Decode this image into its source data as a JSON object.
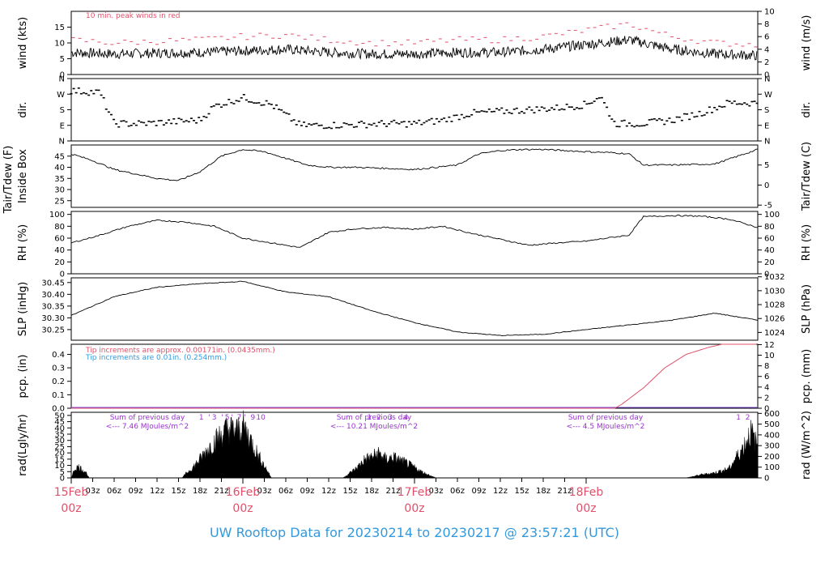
{
  "footer": {
    "title": "UW Rooftop Data for 20230214  to  20230217 @ 23:57:21  (UTC)"
  },
  "colors": {
    "accent_red": "#e0506a",
    "accent_blue": "#3399dd",
    "purple": "#9933cc",
    "black": "#000000"
  },
  "chart_data": [
    {
      "type": "line",
      "name": "wind",
      "ylabel_left": "wind (kts)",
      "ylabel_right": "wind (m/s)",
      "yticks_left": [
        0,
        5,
        10,
        15
      ],
      "ylim_left": [
        0,
        20
      ],
      "yticks_right": [
        0,
        2,
        4,
        6,
        8,
        10
      ],
      "ylim_right": [
        0,
        10
      ],
      "annotation": "10 min. peak winds in red",
      "x_hours": [
        0,
        6,
        12,
        18,
        24,
        30,
        36,
        42,
        48,
        54,
        60,
        66,
        72,
        78,
        84,
        90,
        96
      ],
      "speed_kts": [
        7,
        6.5,
        6.8,
        7,
        7.5,
        8,
        7,
        6.5,
        6.5,
        7,
        7,
        8,
        9.5,
        11,
        8,
        6.5,
        6
      ],
      "peak_kts": [
        11,
        10,
        10.5,
        11,
        12,
        12.5,
        11,
        10,
        10,
        11,
        11,
        12,
        14,
        16,
        12,
        10,
        9.5
      ]
    },
    {
      "type": "scatter",
      "name": "dir",
      "ylabel_left": "dir.",
      "ylabel_right": "dir.",
      "yticks": [
        "N",
        "E",
        "S",
        "W",
        "N"
      ],
      "x_hours": [
        0,
        4,
        6,
        10,
        14,
        18,
        20,
        24,
        28,
        32,
        36,
        44,
        48,
        52,
        56,
        60,
        64,
        68,
        72,
        74,
        76,
        80,
        84,
        88,
        92,
        96
      ],
      "dir_deg": [
        290,
        280,
        100,
        100,
        110,
        120,
        200,
        250,
        210,
        90,
        90,
        100,
        100,
        120,
        160,
        170,
        180,
        190,
        210,
        260,
        100,
        100,
        120,
        160,
        220,
        220
      ]
    },
    {
      "type": "line",
      "name": "temp",
      "ylabel_left": "Tair/Tdew (F)\nInside Box",
      "ylabel_right": "Tair/Tdew (C)",
      "yticks_left": [
        25,
        30,
        35,
        40,
        45
      ],
      "ylim_left": [
        22,
        50
      ],
      "yticks_right": [
        -5,
        0,
        5
      ],
      "ylim_right": [
        -5.56,
        10
      ],
      "x_hours": [
        0,
        3,
        6,
        9,
        12,
        15,
        18,
        21,
        24,
        27,
        30,
        33,
        36,
        40,
        44,
        48,
        51,
        54,
        57,
        60,
        63,
        66,
        72,
        76,
        78,
        80,
        84,
        90,
        96
      ],
      "temp_f": [
        46,
        43,
        39,
        37,
        35,
        34,
        38,
        45,
        48,
        47,
        44,
        41,
        40,
        40,
        39.5,
        39,
        40,
        41,
        46,
        47.5,
        48,
        48,
        47,
        46.5,
        46,
        41,
        41,
        41.5,
        48
      ]
    },
    {
      "type": "line",
      "name": "rh",
      "ylabel_left": "RH (%)",
      "ylabel_right": "RH (%)",
      "yticks": [
        0,
        20,
        40,
        60,
        80,
        100
      ],
      "ylim": [
        0,
        105
      ],
      "x_hours": [
        0,
        4,
        8,
        12,
        16,
        20,
        24,
        28,
        32,
        36,
        40,
        44,
        48,
        52,
        56,
        60,
        64,
        68,
        72,
        76,
        78,
        80,
        84,
        88,
        92,
        96
      ],
      "rh_pct": [
        52,
        65,
        80,
        90,
        87,
        80,
        60,
        52,
        44,
        70,
        76,
        78,
        75,
        80,
        68,
        58,
        48,
        52,
        55,
        62,
        65,
        96,
        98,
        97,
        92,
        78
      ]
    },
    {
      "type": "line",
      "name": "slp",
      "ylabel_left": "SLP (inHg)",
      "ylabel_right": "SLP (hPa)",
      "yticks_left": [
        30.25,
        30.3,
        30.35,
        30.4,
        30.45
      ],
      "ylim_left": [
        30.205,
        30.47
      ],
      "yticks_right": [
        1024,
        1026,
        1028,
        1030,
        1032
      ],
      "ylim_right": [
        1022.88,
        1031.85
      ],
      "x_hours": [
        0,
        6,
        12,
        18,
        24,
        30,
        36,
        42,
        48,
        54,
        60,
        66,
        72,
        78,
        84,
        90,
        96
      ],
      "slp_inhg": [
        30.31,
        30.39,
        30.43,
        30.445,
        30.455,
        30.41,
        30.39,
        30.33,
        30.28,
        30.24,
        30.225,
        30.23,
        30.25,
        30.27,
        30.29,
        30.32,
        30.29
      ]
    },
    {
      "type": "line",
      "name": "pcp",
      "ylabel_left": "pcp. (in)",
      "ylabel_right": "pcp. (mm)",
      "yticks_left": [
        0.0,
        0.1,
        0.2,
        0.3,
        0.4
      ],
      "ylim_left": [
        0,
        0.475
      ],
      "yticks_right": [
        0,
        2,
        4,
        6,
        8,
        10,
        12
      ],
      "ylim_right": [
        0,
        12.07
      ],
      "note_red": "Tip increments are approx. 0.00171in. (0.0435mm.)",
      "note_blue": "Tip increments are 0.01in. (0.254mm.)",
      "x_hours": [
        0,
        76,
        77,
        80,
        83,
        86,
        89,
        91,
        96
      ],
      "pcp_in": [
        0,
        0,
        0.03,
        0.15,
        0.3,
        0.4,
        0.45,
        0.475,
        0.475
      ]
    },
    {
      "type": "area",
      "name": "rad",
      "ylabel_left": "rad(Lgly/hr)",
      "ylabel_right": "rad (W/m^2)",
      "yticks_left": [
        0,
        5,
        10,
        15,
        20,
        25,
        30,
        35,
        40,
        45,
        50
      ],
      "ylim_left": [
        0,
        52.5
      ],
      "yticks_right": [
        0,
        100,
        200,
        300,
        400,
        500,
        600
      ],
      "ylim_right": [
        0,
        610
      ],
      "day_notes": [
        {
          "line1": "Sum of previous day",
          "line2": "<--- 7.46 MJoules/m^2"
        },
        {
          "line1": "Sum of previous day",
          "line2": "<--- 10.21 MJoules/m^2"
        },
        {
          "line1": "Sum of previous day",
          "line2": "<--- 4.5 MJoules/m^2"
        }
      ],
      "hour_markers": [
        {
          "h": 18.2,
          "t": "1"
        },
        {
          "h": 19.3,
          "t": "'"
        },
        {
          "h": 20.0,
          "t": "3"
        },
        {
          "h": 21.1,
          "t": "'"
        },
        {
          "h": 21.8,
          "t": "5"
        },
        {
          "h": 22.5,
          "t": "'"
        },
        {
          "h": 23.5,
          "t": "7"
        },
        {
          "h": 24.3,
          "t": "'"
        },
        {
          "h": 25.4,
          "t": "9"
        },
        {
          "h": 26.5,
          "t": "10"
        },
        {
          "h": 41.7,
          "t": "1"
        },
        {
          "h": 43.0,
          "t": "2"
        },
        {
          "h": 44.6,
          "t": "3"
        },
        {
          "h": 46.8,
          "t": "4"
        },
        {
          "h": 93.3,
          "t": "1"
        },
        {
          "h": 94.6,
          "t": "2"
        }
      ],
      "x_hours": [
        0,
        0.5,
        1,
        2,
        2.5,
        15.5,
        16,
        17,
        18,
        19,
        20,
        21,
        22,
        23,
        24,
        25,
        26,
        27,
        28,
        38,
        39,
        40,
        41,
        42,
        43,
        44,
        45,
        46,
        47,
        48,
        49,
        50,
        51,
        65,
        66,
        70,
        80,
        86,
        88,
        90,
        92,
        93,
        94,
        95,
        96
      ],
      "rad_lgly": [
        0,
        9,
        11,
        6,
        0,
        0,
        4,
        10,
        18,
        27,
        35,
        42,
        48,
        45,
        50,
        38,
        24,
        12,
        0,
        0,
        5,
        10,
        18,
        20,
        24,
        18,
        20,
        17,
        14,
        10,
        6,
        3,
        0,
        0,
        0,
        0,
        0,
        0,
        3,
        5,
        9,
        20,
        30,
        45,
        30
      ]
    }
  ],
  "x_axis": {
    "ticks": [
      {
        "h": 3,
        "t": "03z"
      },
      {
        "h": 6,
        "t": "06z"
      },
      {
        "h": 9,
        "t": "09z"
      },
      {
        "h": 12,
        "t": "12z"
      },
      {
        "h": 15,
        "t": "15z"
      },
      {
        "h": 18,
        "t": "18z"
      },
      {
        "h": 21,
        "t": "21z"
      },
      {
        "h": 27,
        "t": "03z"
      },
      {
        "h": 30,
        "t": "06z"
      },
      {
        "h": 33,
        "t": "09z"
      },
      {
        "h": 36,
        "t": "12z"
      },
      {
        "h": 39,
        "t": "15z"
      },
      {
        "h": 42,
        "t": "18z"
      },
      {
        "h": 45,
        "t": "21z"
      },
      {
        "h": 51,
        "t": "03z"
      },
      {
        "h": 54,
        "t": "06z"
      },
      {
        "h": 57,
        "t": "09z"
      },
      {
        "h": 60,
        "t": "12z"
      },
      {
        "h": 63,
        "t": "15z"
      },
      {
        "h": 66,
        "t": "18z"
      },
      {
        "h": 69,
        "t": "21z"
      }
    ],
    "days": [
      {
        "h": 0,
        "t": "15Feb",
        "z": "00z"
      },
      {
        "h": 24,
        "t": "16Feb",
        "z": "00z"
      },
      {
        "h": 48,
        "t": "17Feb",
        "z": "00z"
      },
      {
        "h": 72,
        "t": "18Feb",
        "z": "00z"
      }
    ]
  }
}
